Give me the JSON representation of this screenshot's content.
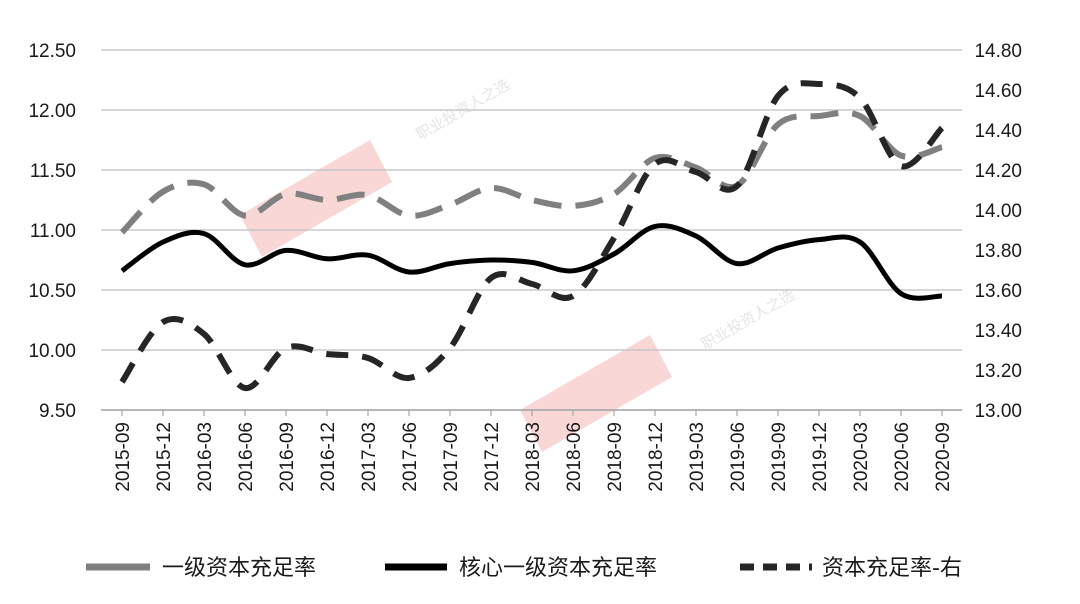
{
  "chart_data": {
    "type": "line",
    "categories": [
      "2015-09",
      "2015-12",
      "2016-03",
      "2016-06",
      "2016-09",
      "2016-12",
      "2017-03",
      "2017-06",
      "2017-09",
      "2017-12",
      "2018-03",
      "2018-06",
      "2018-09",
      "2018-12",
      "2019-03",
      "2019-06",
      "2019-09",
      "2019-12",
      "2020-03",
      "2020-06",
      "2020-09"
    ],
    "series": [
      {
        "name": "一级资本充足率",
        "axis": "left",
        "color": "#808080",
        "style": "solid",
        "values": [
          10.98,
          11.32,
          11.38,
          11.12,
          11.3,
          11.25,
          11.29,
          11.12,
          11.21,
          11.35,
          11.25,
          11.2,
          11.3,
          11.6,
          11.52,
          11.37,
          11.88,
          11.95,
          11.95,
          11.62,
          11.69
        ]
      },
      {
        "name": "核心一级资本充足率",
        "axis": "left",
        "color": "#000000",
        "style": "solid",
        "values": [
          10.66,
          10.9,
          10.97,
          10.71,
          10.83,
          10.76,
          10.79,
          10.65,
          10.72,
          10.75,
          10.73,
          10.66,
          10.8,
          11.03,
          10.95,
          10.72,
          10.85,
          10.92,
          10.9,
          10.47,
          10.45
        ]
      },
      {
        "name": "资本充足率-右",
        "axis": "right",
        "color": "#262626",
        "style": "dashed",
        "values": [
          13.14,
          13.44,
          13.38,
          13.11,
          13.31,
          13.28,
          13.26,
          13.16,
          13.31,
          13.66,
          13.63,
          13.57,
          13.86,
          14.23,
          14.19,
          14.12,
          14.57,
          14.63,
          14.56,
          14.22,
          14.41
        ]
      }
    ],
    "y_left": {
      "ticks": [
        "12.50",
        "12.00",
        "11.50",
        "11.00",
        "10.50",
        "10.00",
        "9.50"
      ],
      "ylim": [
        9.5,
        12.5
      ]
    },
    "y_right": {
      "ticks": [
        "14.80",
        "14.60",
        "14.40",
        "14.20",
        "14.00",
        "13.80",
        "13.60",
        "13.40",
        "13.20",
        "13.00"
      ],
      "ylim": [
        13.0,
        14.8
      ]
    },
    "grid": true,
    "legend_position": "bottom"
  },
  "watermark": {
    "text": "职业投资人之选"
  }
}
